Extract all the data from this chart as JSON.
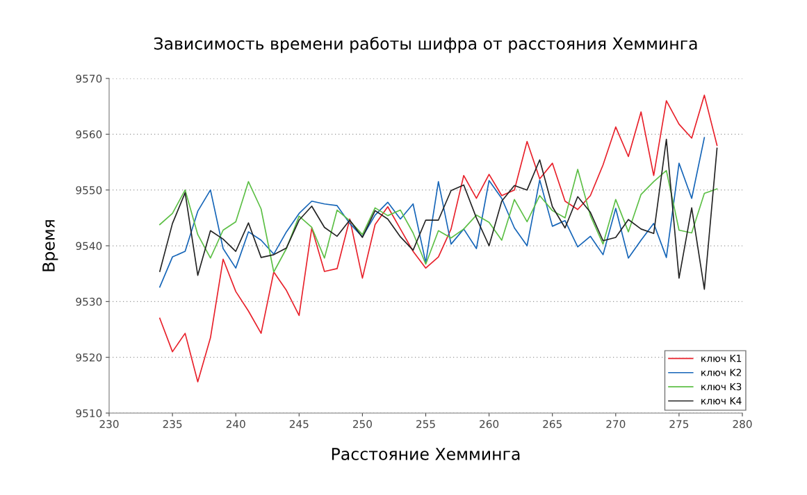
{
  "chart_data": {
    "type": "line",
    "title": "Зависимость времени работы шифра от расстояния Хемминга",
    "xlabel": "Расстояние Хемминга",
    "ylabel": "Время",
    "x": [
      234,
      235,
      236,
      237,
      238,
      239,
      240,
      241,
      242,
      243,
      244,
      245,
      246,
      247,
      248,
      249,
      250,
      251,
      252,
      253,
      254,
      255,
      256,
      257,
      258,
      259,
      260,
      261,
      262,
      263,
      264,
      265,
      266,
      267,
      268,
      269,
      270,
      271,
      272,
      273,
      274,
      275,
      276,
      277,
      278
    ],
    "series": [
      {
        "name": "ключ K1",
        "color": "#e8202a",
        "values": [
          9527,
          9521,
          9524.3,
          9515.6,
          9523.5,
          9537.6,
          9531.8,
          9528.3,
          9524.3,
          9535.3,
          9532,
          9527.5,
          9543.2,
          9535.4,
          9535.9,
          9544.8,
          9534.2,
          9543.8,
          9547,
          9543,
          9539,
          9536,
          9538,
          9543,
          9552.6,
          9548.5,
          9552.8,
          9549,
          9550,
          9558.7,
          9552,
          9554.8,
          9548,
          9546.5,
          9549,
          9554.5,
          9561.3,
          9556,
          9564,
          9552.6,
          9566,
          9561.8,
          9559.3,
          9567,
          9558
        ]
      },
      {
        "name": "ключ K2",
        "color": "#1565b8",
        "values": [
          9532.6,
          9538,
          9539,
          9546.2,
          9550,
          9539.5,
          9536,
          9542.5,
          9541,
          9538.5,
          9542.5,
          9545.8,
          9548,
          9547.5,
          9547.2,
          9544,
          9541.6,
          9545.5,
          9547.8,
          9544.8,
          9547.5,
          9537,
          9551.5,
          9540.3,
          9543,
          9539.5,
          9551.7,
          9548.5,
          9543.2,
          9540,
          9551.8,
          9543.5,
          9544.5,
          9539.8,
          9541.7,
          9538.4,
          9546.7,
          9537.8,
          9541,
          9544,
          9537.9,
          9554.8,
          9548.5,
          9559.4,
          null
        ]
      },
      {
        "name": "ключ K3",
        "color": "#5cbf45",
        "values": [
          9543.8,
          9545.8,
          9550,
          9542,
          9537.8,
          9542.8,
          9544.3,
          9551.5,
          9546.6,
          9535.3,
          9539.5,
          9545.3,
          9543.3,
          9537.8,
          9546.4,
          9544.5,
          9542,
          9546.8,
          9545.4,
          9546.4,
          9542.3,
          9536.7,
          9542.7,
          9541.4,
          9543,
          9545.5,
          9544.2,
          9541,
          9548.3,
          9544.3,
          9549,
          9546.3,
          9545,
          9553.7,
          9545.4,
          9540.3,
          9548.3,
          9542.5,
          9549.2,
          9551.5,
          9553.5,
          9542.8,
          9542.3,
          9549.4,
          9550.2
        ]
      },
      {
        "name": "ключ K4",
        "color": "#222222",
        "values": [
          9535.4,
          9544,
          9549.5,
          9534.7,
          9542.7,
          9541.2,
          9539,
          9544.1,
          9537.9,
          9538.4,
          9539.6,
          9544.6,
          9547.1,
          9543.3,
          9541.7,
          9544.6,
          9541.5,
          9546.3,
          9544.8,
          9541.6,
          9539.2,
          9544.6,
          9544.6,
          9549.9,
          9550.9,
          9545,
          9540,
          9548,
          9550.8,
          9550,
          9555.4,
          9547,
          9543.2,
          9548.8,
          9546,
          9540.9,
          9541.5,
          9544.7,
          9543,
          9542.2,
          9559.1,
          9534.2,
          9546.8,
          9532.2,
          9557.5
        ]
      }
    ],
    "xlim": [
      230,
      280
    ],
    "xticks": [
      230,
      235,
      240,
      245,
      250,
      255,
      260,
      265,
      270,
      275,
      280
    ],
    "ylim": [
      9510,
      9570
    ],
    "yticks": [
      9510,
      9520,
      9530,
      9540,
      9550,
      9560,
      9570
    ],
    "grid": "y",
    "legend": "bottom right",
    "marker": "none",
    "line_style": "solid"
  }
}
